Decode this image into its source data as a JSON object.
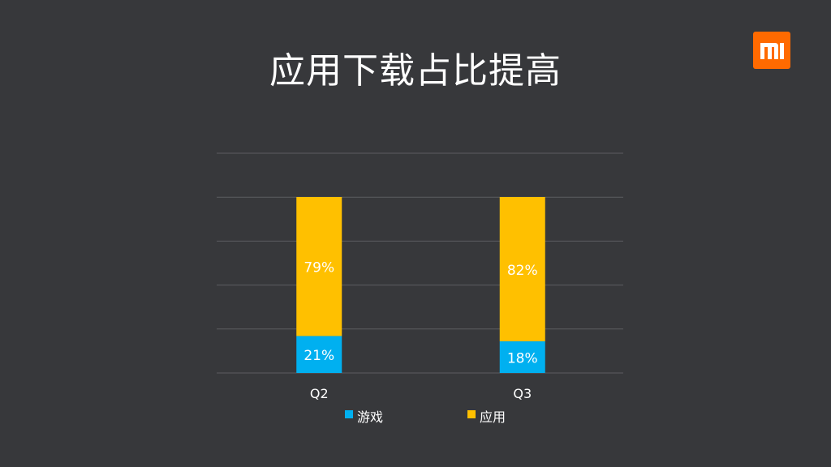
{
  "slide": {
    "title": "应用下载占比提高",
    "logo_text": "mi"
  },
  "colors": {
    "background": "#37383b",
    "game": "#00b0f0",
    "app": "#ffc000",
    "logo": "#ff6a00",
    "grid": "#5c5d61",
    "text": "#ffffff"
  },
  "chart_data": {
    "type": "bar",
    "stacked": true,
    "categories": [
      "Q2",
      "Q3"
    ],
    "series": [
      {
        "name": "游戏",
        "values": [
          21,
          18
        ],
        "labels": [
          "21%",
          "18%"
        ],
        "color": "#00b0f0"
      },
      {
        "name": "应用",
        "values": [
          79,
          82
        ],
        "labels": [
          "79%",
          "82%"
        ],
        "color": "#ffc000"
      }
    ],
    "title": "应用下载占比提高",
    "xlabel": "",
    "ylabel": "",
    "ylim": [
      0,
      100
    ],
    "grid": true,
    "legend": "bottom"
  }
}
